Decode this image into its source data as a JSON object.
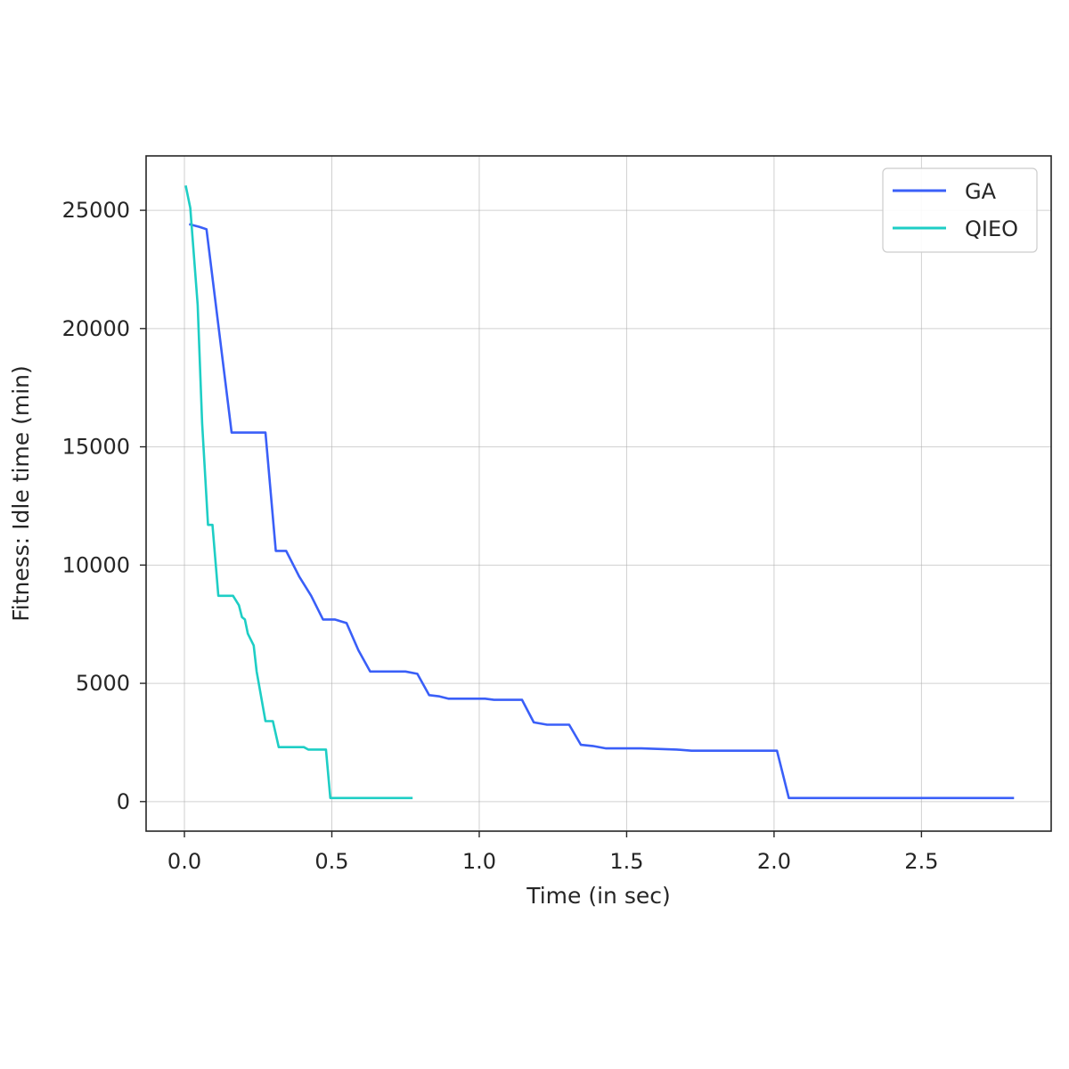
{
  "chart_data": {
    "type": "line",
    "title": "",
    "xlabel": "Time (in sec)",
    "ylabel": "Fitness: Idle time (min)",
    "xlim": [
      -0.13,
      2.94
    ],
    "ylim": [
      -1250,
      27300
    ],
    "xticks": [
      0.0,
      0.5,
      1.0,
      1.5,
      2.0,
      2.5
    ],
    "xtick_labels": [
      "0.0",
      "0.5",
      "1.0",
      "1.5",
      "2.0",
      "2.5"
    ],
    "yticks": [
      0,
      5000,
      10000,
      15000,
      20000,
      25000
    ],
    "ytick_labels": [
      "0",
      "5000",
      "10000",
      "15000",
      "20000",
      "25000"
    ],
    "grid": true,
    "legend_position": "top-right",
    "series": [
      {
        "name": "GA",
        "color": "#3a5ff8",
        "points": [
          [
            0.02,
            24400
          ],
          [
            0.05,
            24300
          ],
          [
            0.075,
            24200
          ],
          [
            0.16,
            15600
          ],
          [
            0.275,
            15600
          ],
          [
            0.31,
            10600
          ],
          [
            0.345,
            10600
          ],
          [
            0.39,
            9500
          ],
          [
            0.43,
            8700
          ],
          [
            0.47,
            7700
          ],
          [
            0.51,
            7700
          ],
          [
            0.55,
            7550
          ],
          [
            0.59,
            6400
          ],
          [
            0.63,
            5500
          ],
          [
            0.75,
            5500
          ],
          [
            0.79,
            5400
          ],
          [
            0.83,
            4500
          ],
          [
            0.865,
            4450
          ],
          [
            0.895,
            4350
          ],
          [
            1.02,
            4350
          ],
          [
            1.05,
            4300
          ],
          [
            1.145,
            4300
          ],
          [
            1.185,
            3350
          ],
          [
            1.23,
            3250
          ],
          [
            1.305,
            3250
          ],
          [
            1.345,
            2400
          ],
          [
            1.385,
            2350
          ],
          [
            1.43,
            2250
          ],
          [
            1.55,
            2250
          ],
          [
            1.67,
            2200
          ],
          [
            1.72,
            2150
          ],
          [
            2.01,
            2150
          ],
          [
            2.05,
            150
          ],
          [
            2.81,
            150
          ]
        ]
      },
      {
        "name": "QIEO",
        "color": "#1ecec5",
        "points": [
          [
            0.005,
            26000
          ],
          [
            0.02,
            25100
          ],
          [
            0.045,
            21000
          ],
          [
            0.06,
            16000
          ],
          [
            0.08,
            11700
          ],
          [
            0.095,
            11700
          ],
          [
            0.115,
            8700
          ],
          [
            0.165,
            8700
          ],
          [
            0.185,
            8300
          ],
          [
            0.195,
            7800
          ],
          [
            0.205,
            7700
          ],
          [
            0.215,
            7100
          ],
          [
            0.235,
            6600
          ],
          [
            0.245,
            5500
          ],
          [
            0.275,
            3400
          ],
          [
            0.3,
            3400
          ],
          [
            0.32,
            2300
          ],
          [
            0.35,
            2300
          ],
          [
            0.375,
            2300
          ],
          [
            0.405,
            2300
          ],
          [
            0.42,
            2200
          ],
          [
            0.48,
            2200
          ],
          [
            0.495,
            150
          ],
          [
            0.77,
            150
          ]
        ]
      }
    ]
  }
}
